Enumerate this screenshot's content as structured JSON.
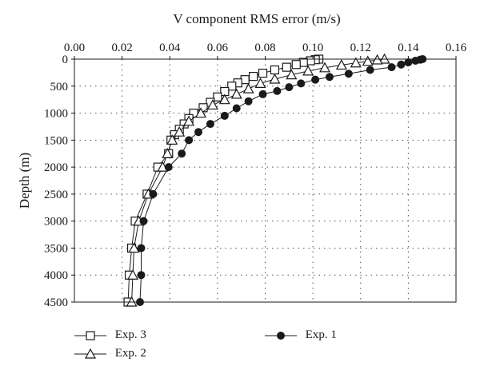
{
  "chart_data": {
    "type": "line",
    "title": "",
    "xlabel": "V component RMS error (m/s)",
    "ylabel": "Depth (m)",
    "xlim": [
      0.0,
      0.16
    ],
    "ylim": [
      0,
      4500
    ],
    "y_inverted": true,
    "x_axis_position": "top",
    "xticks": [
      "0.00",
      "0.02",
      "0.04",
      "0.06",
      "0.08",
      "0.10",
      "0.12",
      "0.14",
      "0.16"
    ],
    "yticks": [
      "0",
      "500",
      "1000",
      "1500",
      "2000",
      "2500",
      "3000",
      "3500",
      "4000",
      "4500"
    ],
    "grid": "dotted",
    "legend_position": "below",
    "series": [
      {
        "name": "Exp. 3",
        "marker": "square",
        "color": "#1a1a1a",
        "points": [
          [
            0.1025,
            0
          ],
          [
            0.101,
            10
          ],
          [
            0.099,
            30
          ],
          [
            0.096,
            60
          ],
          [
            0.093,
            100
          ],
          [
            0.089,
            150
          ],
          [
            0.084,
            200
          ],
          [
            0.079,
            260
          ],
          [
            0.075,
            320
          ],
          [
            0.0715,
            380
          ],
          [
            0.0685,
            440
          ],
          [
            0.066,
            500
          ],
          [
            0.063,
            600
          ],
          [
            0.06,
            700
          ],
          [
            0.057,
            800
          ],
          [
            0.054,
            900
          ],
          [
            0.05,
            1000
          ],
          [
            0.048,
            1100
          ],
          [
            0.046,
            1200
          ],
          [
            0.044,
            1300
          ],
          [
            0.042,
            1400
          ],
          [
            0.0405,
            1500
          ],
          [
            0.0395,
            1750
          ],
          [
            0.035,
            2000
          ],
          [
            0.0305,
            2500
          ],
          [
            0.0255,
            3000
          ],
          [
            0.024,
            3500
          ],
          [
            0.023,
            4000
          ],
          [
            0.0225,
            4500
          ]
        ]
      },
      {
        "name": "Exp. 2",
        "marker": "triangle",
        "color": "#1a1a1a",
        "points": [
          [
            0.13,
            0
          ],
          [
            0.127,
            15
          ],
          [
            0.123,
            40
          ],
          [
            0.118,
            70
          ],
          [
            0.112,
            110
          ],
          [
            0.105,
            160
          ],
          [
            0.098,
            220
          ],
          [
            0.091,
            290
          ],
          [
            0.084,
            370
          ],
          [
            0.078,
            450
          ],
          [
            0.073,
            550
          ],
          [
            0.068,
            650
          ],
          [
            0.063,
            750
          ],
          [
            0.058,
            850
          ],
          [
            0.053,
            1000
          ],
          [
            0.048,
            1150
          ],
          [
            0.044,
            1350
          ],
          [
            0.041,
            1500
          ],
          [
            0.039,
            1750
          ],
          [
            0.037,
            2000
          ],
          [
            0.031,
            2500
          ],
          [
            0.027,
            3000
          ],
          [
            0.025,
            3500
          ],
          [
            0.0245,
            4000
          ],
          [
            0.024,
            4500
          ]
        ]
      },
      {
        "name": "Exp. 1",
        "marker": "circle",
        "color": "#1a1a1a",
        "points": [
          [
            0.146,
            0
          ],
          [
            0.145,
            10
          ],
          [
            0.143,
            30
          ],
          [
            0.14,
            60
          ],
          [
            0.137,
            100
          ],
          [
            0.133,
            150
          ],
          [
            0.124,
            200
          ],
          [
            0.115,
            270
          ],
          [
            0.107,
            330
          ],
          [
            0.101,
            380
          ],
          [
            0.095,
            450
          ],
          [
            0.09,
            520
          ],
          [
            0.085,
            590
          ],
          [
            0.079,
            650
          ],
          [
            0.073,
            780
          ],
          [
            0.068,
            910
          ],
          [
            0.063,
            1050
          ],
          [
            0.057,
            1200
          ],
          [
            0.052,
            1350
          ],
          [
            0.048,
            1500
          ],
          [
            0.045,
            1750
          ],
          [
            0.0395,
            2000
          ],
          [
            0.033,
            2500
          ],
          [
            0.029,
            3000
          ],
          [
            0.028,
            3500
          ],
          [
            0.028,
            4000
          ],
          [
            0.0275,
            4500
          ]
        ]
      }
    ]
  }
}
